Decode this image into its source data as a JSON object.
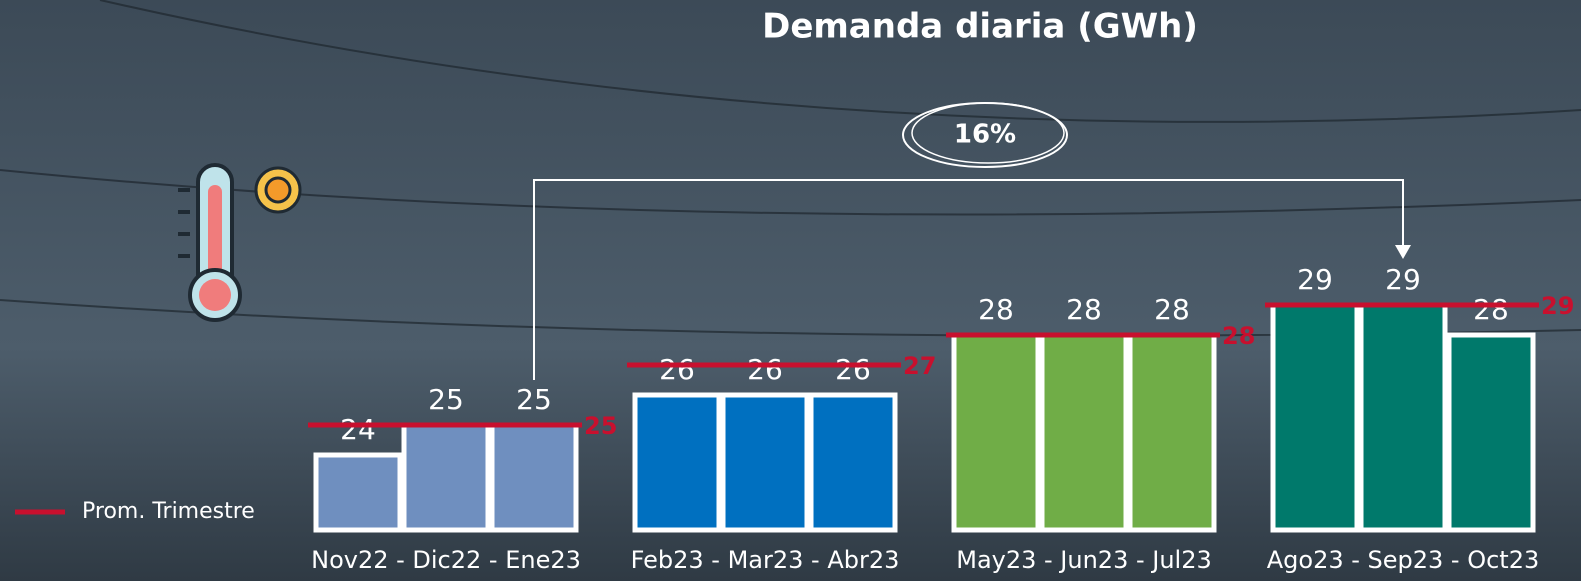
{
  "chart_data": {
    "type": "bar",
    "title": "Demanda diaria (GWh)",
    "groups": [
      {
        "label": "Nov22 - Dic22 - Ene23",
        "color": "#6f8fbf",
        "values": [
          24,
          25,
          25
        ],
        "average": 25
      },
      {
        "label": "Feb23 - Mar23 - Abr23",
        "color": "#0070c0",
        "values": [
          26,
          26,
          26
        ],
        "average": 27
      },
      {
        "label": "May23 - Jun23 - Jul23",
        "color": "#70ad47",
        "values": [
          28,
          28,
          28
        ],
        "average": 28
      },
      {
        "label": "Ago23 - Sep23 - Oct23",
        "color": "#00796b",
        "values": [
          29,
          29,
          28
        ],
        "average": 29
      }
    ],
    "average_color": "#c8102e",
    "legend": "Prom. Trimestre",
    "annotation": "16%"
  }
}
